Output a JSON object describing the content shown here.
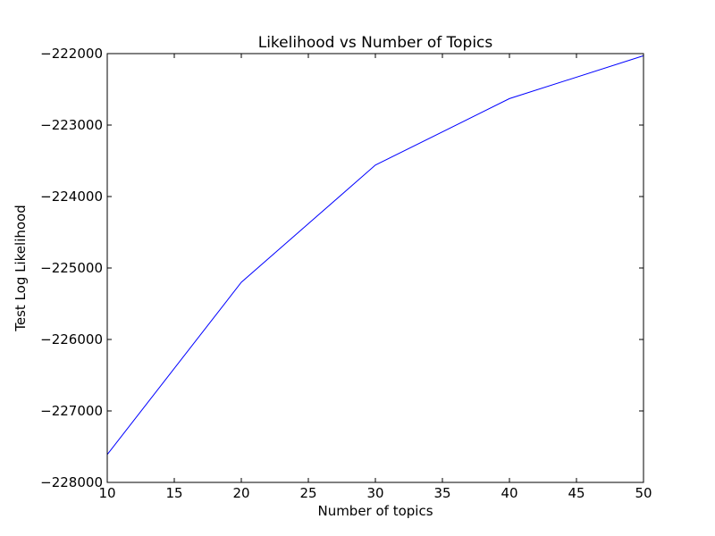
{
  "chart_data": {
    "type": "line",
    "title": "Likelihood vs Number of Topics",
    "xlabel": "Number of topics",
    "ylabel": "Test Log Likelihood",
    "xlim": [
      10,
      50
    ],
    "ylim": [
      -228000,
      -222000
    ],
    "xticks": [
      10,
      15,
      20,
      25,
      30,
      35,
      40,
      45,
      50
    ],
    "yticks": [
      -228000,
      -227000,
      -226000,
      -225000,
      -224000,
      -223000,
      -222000
    ],
    "xtick_labels": [
      "10",
      "15",
      "20",
      "25",
      "30",
      "35",
      "40",
      "45",
      "50"
    ],
    "ytick_labels": [
      "−228000",
      "−227000",
      "−226000",
      "−225000",
      "−224000",
      "−223000",
      "−222000"
    ],
    "grid": false,
    "legend": "none",
    "series": [
      {
        "color": "#0000ff",
        "x": [
          10,
          20,
          30,
          40,
          50
        ],
        "y": [
          -227610,
          -225200,
          -223560,
          -222630,
          -222030
        ]
      }
    ]
  }
}
